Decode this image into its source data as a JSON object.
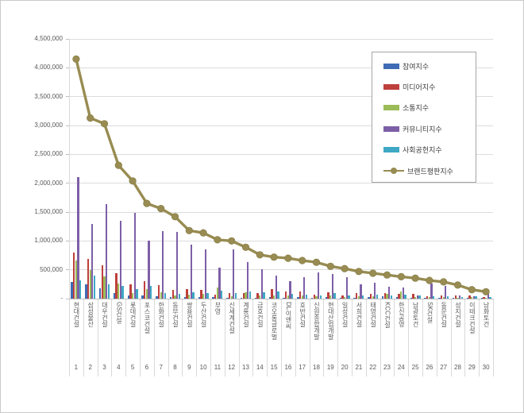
{
  "chart_data": {
    "type": "bar",
    "title": "",
    "xlabel": "",
    "ylabel": "",
    "grid": true,
    "legend_position": "top-right",
    "y_axis": {
      "min": 0,
      "max": 4500000,
      "tick_interval": 500000,
      "tick_labels": [
        "-",
        "500,000",
        "1,000,000",
        "1,500,000",
        "2,000,000",
        "2,500,000",
        "3,000,000",
        "3,500,000",
        "4,000,000",
        "4,500,000"
      ]
    },
    "categories": [
      "현대건설",
      "삼성물산",
      "대우건설",
      "GS건설",
      "롯데건설",
      "포스코건설",
      "한화건설",
      "동부건설",
      "쌍용건설",
      "두산건설",
      "부영",
      "신세계건설",
      "계룡건설",
      "금호건설",
      "코오롱글로벌",
      "DL이앤씨",
      "호반건설",
      "신원종합개발",
      "현대산업개발",
      "일성건설",
      "서희건설",
      "태영건설",
      "KCC건설",
      "한신공영",
      "남광토건",
      "SK건설",
      "동문건설",
      "성지건설",
      "이테크건설",
      "남화토건"
    ],
    "ranks": [
      "1",
      "2",
      "3",
      "4",
      "5",
      "6",
      "7",
      "8",
      "9",
      "10",
      "11",
      "12",
      "13",
      "14",
      "15",
      "16",
      "17",
      "18",
      "19",
      "20",
      "21",
      "22",
      "23",
      "24",
      "25",
      "26",
      "27",
      "28",
      "29",
      "30"
    ],
    "series": [
      {
        "name": "참여지수",
        "type": "bar",
        "color": "#3f6cb4",
        "values": [
          290000,
          250000,
          180000,
          100000,
          60000,
          50000,
          40000,
          30000,
          25000,
          30000,
          30000,
          20000,
          20000,
          20000,
          25000,
          20000,
          25000,
          20000,
          30000,
          15000,
          20000,
          25000,
          40000,
          30000,
          20000,
          20000,
          15000,
          10000,
          15000,
          10000
        ]
      },
      {
        "name": "미디어지수",
        "type": "bar",
        "color": "#be403c",
        "values": [
          800000,
          690000,
          580000,
          440000,
          250000,
          300000,
          230000,
          150000,
          170000,
          150000,
          70000,
          95000,
          100000,
          90000,
          170000,
          120000,
          130000,
          70000,
          110000,
          60000,
          90000,
          80000,
          90000,
          80000,
          80000,
          40000,
          50000,
          50000,
          60000,
          30000
        ]
      },
      {
        "name": "소통지수",
        "type": "bar",
        "color": "#9bbb59",
        "values": [
          660000,
          500000,
          385000,
          260000,
          90000,
          160000,
          110000,
          60000,
          70000,
          80000,
          190000,
          40000,
          115000,
          60000,
          60000,
          60000,
          50000,
          40000,
          50000,
          30000,
          40000,
          40000,
          80000,
          120000,
          30000,
          30000,
          30000,
          20000,
          25000,
          20000
        ]
      },
      {
        "name": "커뮤니티지수",
        "type": "bar",
        "color": "#7d5fa7",
        "values": [
          2100000,
          1290000,
          1640000,
          1350000,
          1480000,
          1000000,
          1170000,
          1150000,
          940000,
          860000,
          540000,
          850000,
          640000,
          510000,
          400000,
          300000,
          370000,
          450000,
          420000,
          370000,
          250000,
          275000,
          210000,
          190000,
          60000,
          255000,
          225000,
          60000,
          40000,
          90000
        ]
      },
      {
        "name": "사회공헌지수",
        "type": "bar",
        "color": "#3fa8c4",
        "values": [
          320000,
          400000,
          250000,
          220000,
          170000,
          220000,
          90000,
          80000,
          105000,
          100000,
          140000,
          95000,
          125000,
          110000,
          120000,
          80000,
          70000,
          60000,
          90000,
          50000,
          60000,
          70000,
          60000,
          70000,
          60000,
          40000,
          40000,
          30000,
          35000,
          25000
        ]
      },
      {
        "name": "브랜드평판지수",
        "type": "line",
        "color": "#988c52",
        "values": [
          4150000,
          3130000,
          3030000,
          2310000,
          2040000,
          1650000,
          1560000,
          1420000,
          1180000,
          1140000,
          1020000,
          1000000,
          890000,
          760000,
          720000,
          700000,
          660000,
          630000,
          560000,
          520000,
          470000,
          440000,
          410000,
          380000,
          355000,
          315000,
          290000,
          235000,
          155000,
          120000
        ]
      }
    ]
  }
}
